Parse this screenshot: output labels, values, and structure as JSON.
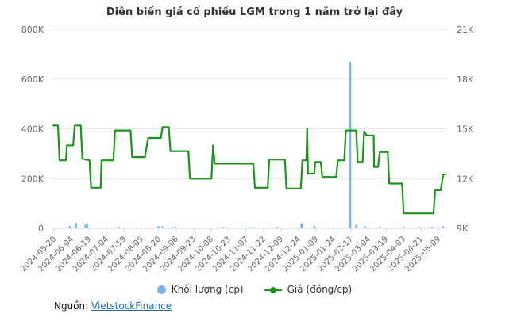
{
  "title": "Diễn biến giá cổ phiếu LGM trong 1 năm trở lại đây",
  "legend": {
    "volume": {
      "label": "Khối lượng (cp)",
      "color": "#7cb5ec"
    },
    "price": {
      "label": "Giá (đồng/cp)",
      "color": "#1a961a"
    }
  },
  "source": {
    "label": "Nguồn:",
    "link": "VietstockFinance"
  },
  "chart_data": {
    "type": "line+bar",
    "title": "Diễn biến giá cổ phiếu LGM trong 1 năm trở lại đây",
    "grid": true,
    "legend_position": "bottom",
    "colors": {
      "grid": "#e6e6e6",
      "axis_line": "#c6d6ea",
      "axis_text": "#666666"
    },
    "x_ticks": [
      "2024-05-20",
      "2024-06-04",
      "2024-06-19",
      "2024-07-04",
      "2024-07-19",
      "2024-08-05",
      "2024-08-20",
      "2024-09-06",
      "2024-09-23",
      "2024-10-08",
      "2024-10-23",
      "2024-11-07",
      "2024-11-22",
      "2024-12-09",
      "2024-12-24",
      "2025-01-09",
      "2025-01-24",
      "2025-02-17",
      "2025-03-04",
      "2025-03-19",
      "2025-04-03",
      "2025-04-21",
      "2025-05-09"
    ],
    "left_axis": {
      "title": "Khối lượng (cp)",
      "labels": [
        "800K",
        "600K",
        "400K",
        "200K",
        "0"
      ],
      "min": 0,
      "max": 800000
    },
    "right_axis": {
      "title": "Giá (đồng/cp)",
      "labels": [
        "21K",
        "18K",
        "15K",
        "12K",
        "9K"
      ],
      "min": 9000,
      "max": 21000
    },
    "price_series": {
      "name": "Giá (đồng/cp)",
      "color": "#1a961a",
      "points": [
        [
          0.008,
          15200
        ],
        [
          0.02,
          15200
        ],
        [
          0.024,
          13100
        ],
        [
          0.04,
          13100
        ],
        [
          0.042,
          14000
        ],
        [
          0.058,
          14000
        ],
        [
          0.062,
          15200
        ],
        [
          0.077,
          15200
        ],
        [
          0.081,
          13200
        ],
        [
          0.099,
          13100
        ],
        [
          0.103,
          11450
        ],
        [
          0.127,
          11450
        ],
        [
          0.129,
          13100
        ],
        [
          0.159,
          13100
        ],
        [
          0.163,
          14900
        ],
        [
          0.202,
          14900
        ],
        [
          0.206,
          13300
        ],
        [
          0.238,
          13300
        ],
        [
          0.246,
          14450
        ],
        [
          0.278,
          14450
        ],
        [
          0.282,
          15100
        ],
        [
          0.298,
          15100
        ],
        [
          0.302,
          13650
        ],
        [
          0.347,
          13650
        ],
        [
          0.351,
          12000
        ],
        [
          0.405,
          12000
        ],
        [
          0.409,
          14000
        ],
        [
          0.413,
          12900
        ],
        [
          0.51,
          12900
        ],
        [
          0.514,
          11450
        ],
        [
          0.546,
          11450
        ],
        [
          0.55,
          13150
        ],
        [
          0.589,
          13150
        ],
        [
          0.593,
          11400
        ],
        [
          0.629,
          11400
        ],
        [
          0.633,
          13100
        ],
        [
          0.643,
          13100
        ],
        [
          0.645,
          15000
        ],
        [
          0.647,
          12300
        ],
        [
          0.663,
          12300
        ],
        [
          0.665,
          13000
        ],
        [
          0.679,
          13000
        ],
        [
          0.683,
          12100
        ],
        [
          0.718,
          12100
        ],
        [
          0.722,
          13100
        ],
        [
          0.738,
          13100
        ],
        [
          0.742,
          14900
        ],
        [
          0.768,
          14900
        ],
        [
          0.772,
          13000
        ],
        [
          0.784,
          13000
        ],
        [
          0.788,
          14850
        ],
        [
          0.794,
          14600
        ],
        [
          0.812,
          14600
        ],
        [
          0.813,
          12700
        ],
        [
          0.823,
          12700
        ],
        [
          0.827,
          13600
        ],
        [
          0.847,
          13600
        ],
        [
          0.851,
          11700
        ],
        [
          0.883,
          11700
        ],
        [
          0.887,
          9900
        ],
        [
          0.962,
          9900
        ],
        [
          0.966,
          11300
        ],
        [
          0.98,
          11300
        ],
        [
          0.986,
          12250
        ],
        [
          0.992,
          12250
        ]
      ]
    },
    "volume_series": {
      "name": "Khối lượng (cp)",
      "color": "#7cb5ec",
      "points": [
        [
          0.05,
          10000
        ],
        [
          0.065,
          22000
        ],
        [
          0.089,
          14000
        ],
        [
          0.093,
          20000
        ],
        [
          0.173,
          6000
        ],
        [
          0.272,
          9000
        ],
        [
          0.282,
          8000
        ],
        [
          0.308,
          6000
        ],
        [
          0.315,
          5000
        ],
        [
          0.435,
          5000
        ],
        [
          0.51,
          5000
        ],
        [
          0.569,
          6000
        ],
        [
          0.631,
          20000
        ],
        [
          0.663,
          10000
        ],
        [
          0.753,
          670000
        ],
        [
          0.768,
          15000
        ],
        [
          0.79,
          8000
        ],
        [
          0.827,
          6000
        ],
        [
          0.887,
          5000
        ],
        [
          0.927,
          5000
        ],
        [
          0.958,
          6000
        ],
        [
          0.986,
          9000
        ]
      ]
    }
  }
}
